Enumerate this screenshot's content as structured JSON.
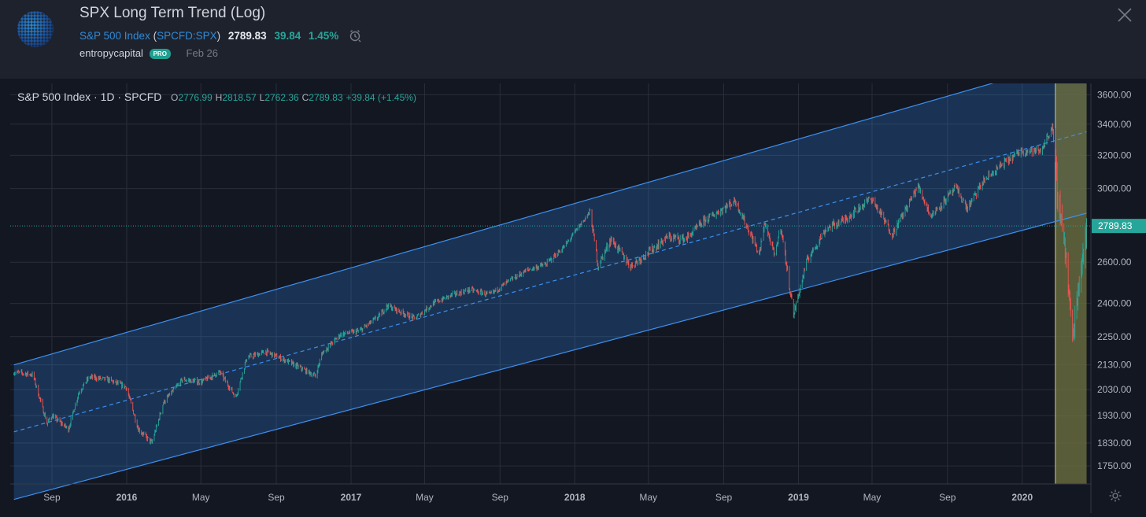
{
  "header": {
    "title": "SPX Long Term Trend (Log)",
    "symbol_name": "S&P 500 Index",
    "symbol_code": "SPCFD:SPX",
    "price": "2789.83",
    "change": "39.84",
    "change_pct": "1.45%",
    "author": "entropycapital",
    "badge": "PRO",
    "date": "Feb 26",
    "close_icon": "close-icon",
    "alarm_icon": "alarm-icon"
  },
  "legend": {
    "symbol": "S&P 500 Index · 1D · SPCFD",
    "o_label": "O",
    "o": "2776.99",
    "h_label": "H",
    "h": "2818.57",
    "l_label": "L",
    "l": "2762.36",
    "c_label": "C",
    "c": "2789.83",
    "chg": "+39.84 (+1.45%)"
  },
  "chart_data": {
    "type": "candlestick",
    "scale": "log",
    "grid": true,
    "ylim": [
      1690,
      3680
    ],
    "y_ticks": [
      "3600.00",
      "3400.00",
      "3200.00",
      "3000.00",
      "2600.00",
      "2400.00",
      "2250.00",
      "2130.00",
      "2030.00",
      "1930.00",
      "1830.00",
      "1750.00"
    ],
    "x_ticks": [
      "Sep",
      "2016",
      "May",
      "Sep",
      "2017",
      "May",
      "Sep",
      "2018",
      "May",
      "Sep",
      "2019",
      "May",
      "Sep",
      "2020"
    ],
    "last_price_label": "2789.83",
    "colors": {
      "up": "#26a69a",
      "down": "#ef5350",
      "channel": "#2f7fd8",
      "highlight": "#6b6e3f",
      "background": "#131722"
    },
    "closes": [
      [
        "2015-07-01",
        2100
      ],
      [
        "2015-08-01",
        2090
      ],
      [
        "2015-08-24",
        1900
      ],
      [
        "2015-09-01",
        1930
      ],
      [
        "2015-09-28",
        1880
      ],
      [
        "2015-10-15",
        2020
      ],
      [
        "2015-11-01",
        2080
      ],
      [
        "2015-12-01",
        2070
      ],
      [
        "2015-12-31",
        2040
      ],
      [
        "2016-01-20",
        1880
      ],
      [
        "2016-02-11",
        1830
      ],
      [
        "2016-03-01",
        1980
      ],
      [
        "2016-04-01",
        2070
      ],
      [
        "2016-05-01",
        2060
      ],
      [
        "2016-06-01",
        2100
      ],
      [
        "2016-06-27",
        2000
      ],
      [
        "2016-07-15",
        2160
      ],
      [
        "2016-08-15",
        2185
      ],
      [
        "2016-09-15",
        2150
      ],
      [
        "2016-11-04",
        2085
      ],
      [
        "2016-11-15",
        2180
      ],
      [
        "2016-12-15",
        2260
      ],
      [
        "2017-01-15",
        2275
      ],
      [
        "2017-02-15",
        2340
      ],
      [
        "2017-03-01",
        2390
      ],
      [
        "2017-04-15",
        2330
      ],
      [
        "2017-05-15",
        2400
      ],
      [
        "2017-06-15",
        2440
      ],
      [
        "2017-07-15",
        2465
      ],
      [
        "2017-08-15",
        2440
      ],
      [
        "2017-09-15",
        2505
      ],
      [
        "2017-10-15",
        2560
      ],
      [
        "2017-11-15",
        2590
      ],
      [
        "2017-12-15",
        2680
      ],
      [
        "2018-01-26",
        2870
      ],
      [
        "2018-02-08",
        2580
      ],
      [
        "2018-03-01",
        2720
      ],
      [
        "2018-04-02",
        2580
      ],
      [
        "2018-05-01",
        2650
      ],
      [
        "2018-06-01",
        2730
      ],
      [
        "2018-07-01",
        2720
      ],
      [
        "2018-08-01",
        2820
      ],
      [
        "2018-09-20",
        2930
      ],
      [
        "2018-10-10",
        2780
      ],
      [
        "2018-10-29",
        2640
      ],
      [
        "2018-11-07",
        2810
      ],
      [
        "2018-11-23",
        2630
      ],
      [
        "2018-12-03",
        2790
      ],
      [
        "2018-12-24",
        2350
      ],
      [
        "2019-01-15",
        2610
      ],
      [
        "2019-02-15",
        2775
      ],
      [
        "2019-03-15",
        2820
      ],
      [
        "2019-04-30",
        2945
      ],
      [
        "2019-06-03",
        2745
      ],
      [
        "2019-07-15",
        3015
      ],
      [
        "2019-08-05",
        2845
      ],
      [
        "2019-09-15",
        3005
      ],
      [
        "2019-10-03",
        2885
      ],
      [
        "2019-10-30",
        3045
      ],
      [
        "2019-11-30",
        3145
      ],
      [
        "2019-12-31",
        3230
      ],
      [
        "2020-01-31",
        3225
      ],
      [
        "2020-02-19",
        3385
      ],
      [
        "2020-02-28",
        2955
      ],
      [
        "2020-03-09",
        2745
      ],
      [
        "2020-03-23",
        2240
      ],
      [
        "2020-04-01",
        2470
      ],
      [
        "2020-04-15",
        2790
      ]
    ],
    "channel": {
      "upper": [
        [
          "2015-07-01",
          2130
        ],
        [
          "2020-04-15",
          3880
        ]
      ],
      "mid": [
        [
          "2015-07-01",
          1870
        ],
        [
          "2020-04-15",
          3350
        ]
      ],
      "lower": [
        [
          "2015-07-01",
          1640
        ],
        [
          "2020-04-15",
          2860
        ]
      ]
    },
    "highlight_range": [
      "2020-02-24",
      "2020-04-15"
    ],
    "x_range": [
      "2015-06-25",
      "2020-04-22"
    ]
  }
}
